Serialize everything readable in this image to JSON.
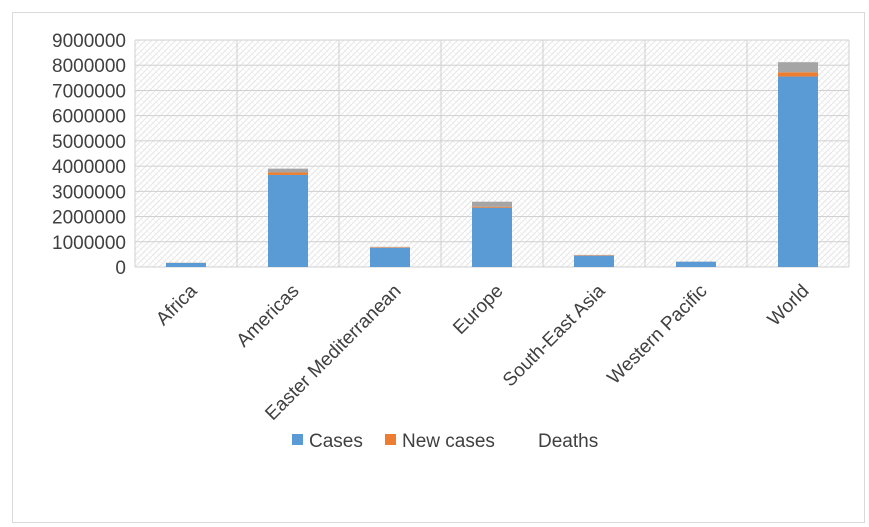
{
  "chart_data": {
    "type": "bar",
    "stacked": true,
    "categories": [
      "Africa",
      "Americas",
      "Easter Mediterranean",
      "Europe",
      "South-East Asia",
      "Western Pacific",
      "World"
    ],
    "series": [
      {
        "name": "Cases",
        "color": "#5b9bd5",
        "values": [
          160000,
          3650000,
          760000,
          2350000,
          450000,
          210000,
          7550000
        ]
      },
      {
        "name": "New cases",
        "color": "#ed7d31",
        "values": [
          5000,
          100000,
          20000,
          40000,
          20000,
          2000,
          170000
        ]
      },
      {
        "name": "Deaths",
        "color": "#a5a5a5",
        "values": [
          5000,
          150000,
          20000,
          200000,
          10000,
          8000,
          400000
        ]
      }
    ],
    "ylim": [
      0,
      9000000
    ],
    "yticks": [
      "0",
      "1000000",
      "2000000",
      "3000000",
      "4000000",
      "5000000",
      "6000000",
      "7000000",
      "8000000",
      "9000000"
    ],
    "grid": true,
    "legend": "bottom"
  }
}
